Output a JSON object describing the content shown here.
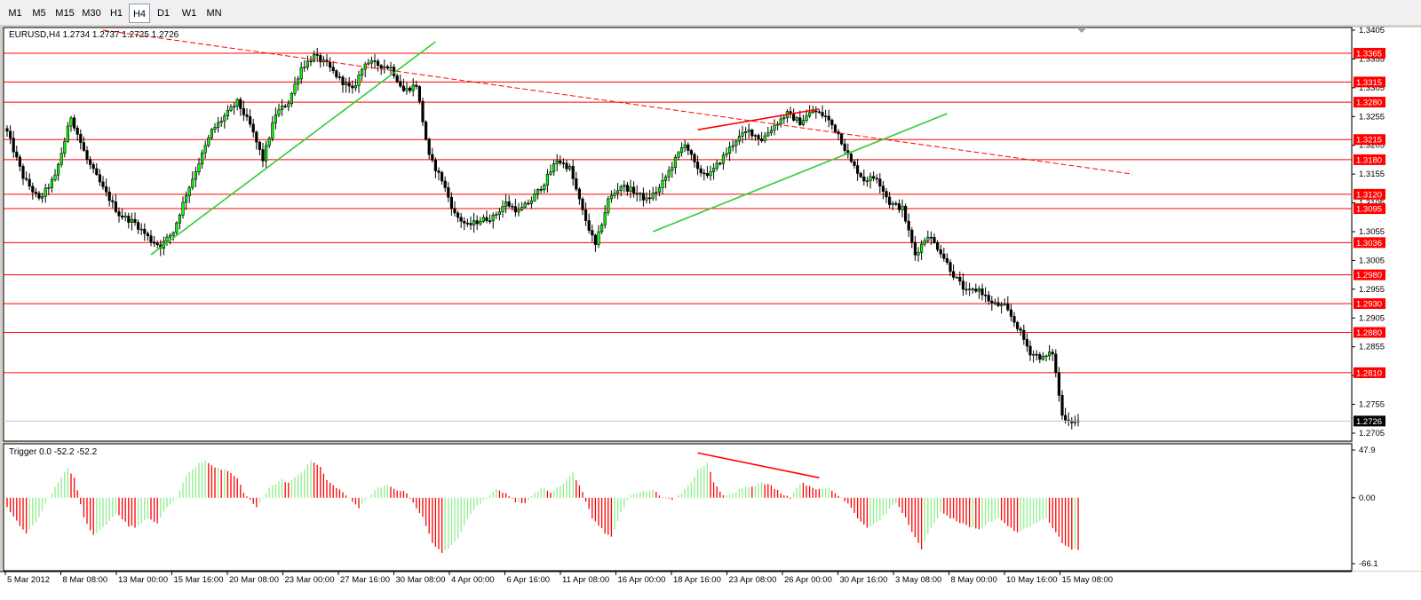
{
  "toolbar": {
    "timeframes": [
      "M1",
      "M5",
      "M15",
      "M30",
      "H1",
      "H4",
      "D1",
      "W1",
      "MN"
    ],
    "active": "H4"
  },
  "colors": {
    "bull": "#00ff00",
    "bear": "#ff0000",
    "level": "#ff0000",
    "trend_green": "#32cd32",
    "trend_red": "#ff0000",
    "osc_pos": "#90ee90",
    "osc_neg": "#ff0000",
    "current_label_bg": "#000000"
  },
  "chart_data": [
    {
      "type": "candlestick",
      "title": "EURUSD,H4  1.2734 1.2737 1.2725 1.2726",
      "symbol": "EURUSD",
      "timeframe": "H4",
      "ohlc_last": {
        "open": 1.2734,
        "high": 1.2737,
        "low": 1.2725,
        "close": 1.2726
      },
      "ylim": [
        1.2705,
        1.3405
      ],
      "y_ticks": [
        "1.3405",
        "1.3355",
        "1.3305",
        "1.3255",
        "1.3205",
        "1.3155",
        "1.3105",
        "1.3055",
        "1.3005",
        "1.2955",
        "1.2905",
        "1.2855",
        "1.2805",
        "1.2755",
        "1.2705"
      ],
      "x_ticks": [
        "5 Mar 2012",
        "8 Mar 08:00",
        "13 Mar 00:00",
        "15 Mar 16:00",
        "20 Mar 08:00",
        "23 Mar 00:00",
        "27 Mar 16:00",
        "30 Mar 08:00",
        "4 Apr 00:00",
        "6 Apr 16:00",
        "11 Apr 08:00",
        "16 Apr 00:00",
        "18 Apr 16:00",
        "23 Apr 08:00",
        "26 Apr 00:00",
        "30 Apr 16:00",
        "3 May 08:00",
        "8 May 00:00",
        "10 May 16:00",
        "15 May 08:00"
      ],
      "horizontal_levels": [
        "1.3365",
        "1.3315",
        "1.3280",
        "1.3215",
        "1.3180",
        "1.3120",
        "1.3095",
        "1.3036",
        "1.2980",
        "1.2930",
        "1.2880",
        "1.2810"
      ],
      "current_price": "1.2726",
      "anchors": [
        [
          0,
          1.3228
        ],
        [
          5,
          1.315
        ],
        [
          10,
          1.311
        ],
        [
          15,
          1.315
        ],
        [
          20,
          1.3255
        ],
        [
          25,
          1.318
        ],
        [
          30,
          1.313
        ],
        [
          35,
          1.3085
        ],
        [
          40,
          1.307
        ],
        [
          45,
          1.304
        ],
        [
          48,
          1.303
        ],
        [
          52,
          1.3055
        ],
        [
          56,
          1.312
        ],
        [
          60,
          1.3175
        ],
        [
          64,
          1.323
        ],
        [
          68,
          1.3255
        ],
        [
          72,
          1.328
        ],
        [
          76,
          1.324
        ],
        [
          80,
          1.318
        ],
        [
          84,
          1.326
        ],
        [
          88,
          1.328
        ],
        [
          92,
          1.334
        ],
        [
          96,
          1.336
        ],
        [
          100,
          1.3345
        ],
        [
          104,
          1.332
        ],
        [
          108,
          1.33
        ],
        [
          112,
          1.335
        ],
        [
          116,
          1.3345
        ],
        [
          120,
          1.334
        ],
        [
          124,
          1.33
        ],
        [
          128,
          1.331
        ],
        [
          132,
          1.3185
        ],
        [
          136,
          1.3145
        ],
        [
          140,
          1.3085
        ],
        [
          144,
          1.3065
        ],
        [
          148,
          1.3075
        ],
        [
          152,
          1.308
        ],
        [
          156,
          1.3105
        ],
        [
          160,
          1.309
        ],
        [
          164,
          1.311
        ],
        [
          168,
          1.314
        ],
        [
          172,
          1.318
        ],
        [
          176,
          1.3165
        ],
        [
          180,
          1.309
        ],
        [
          184,
          1.303
        ],
        [
          188,
          1.311
        ],
        [
          192,
          1.3135
        ],
        [
          196,
          1.3125
        ],
        [
          200,
          1.311
        ],
        [
          204,
          1.313
        ],
        [
          208,
          1.317
        ],
        [
          212,
          1.321
        ],
        [
          216,
          1.316
        ],
        [
          220,
          1.3155
        ],
        [
          224,
          1.3185
        ],
        [
          228,
          1.3215
        ],
        [
          232,
          1.323
        ],
        [
          236,
          1.3215
        ],
        [
          240,
          1.324
        ],
        [
          244,
          1.326
        ],
        [
          248,
          1.3245
        ],
        [
          252,
          1.3265
        ],
        [
          256,
          1.3255
        ],
        [
          260,
          1.3225
        ],
        [
          264,
          1.3175
        ],
        [
          268,
          1.3145
        ],
        [
          272,
          1.315
        ],
        [
          276,
          1.3105
        ],
        [
          280,
          1.3095
        ],
        [
          284,
          1.3015
        ],
        [
          288,
          1.305
        ],
        [
          292,
          1.302
        ],
        [
          296,
          1.298
        ],
        [
          300,
          1.295
        ],
        [
          304,
          1.2955
        ],
        [
          308,
          1.293
        ],
        [
          312,
          1.2925
        ],
        [
          316,
          1.289
        ],
        [
          320,
          1.2845
        ],
        [
          324,
          1.2835
        ],
        [
          327,
          1.2845
        ],
        [
          330,
          1.2735
        ],
        [
          333,
          1.2726
        ]
      ],
      "price_trendlines": [
        {
          "color": "red",
          "style": "dashed",
          "from": [
            30,
            1.3405
          ],
          "to": [
            352,
            1.3155
          ]
        },
        {
          "color": "green",
          "style": "solid",
          "from": [
            45,
            1.3015
          ],
          "to": [
            134,
            1.3385
          ]
        },
        {
          "color": "green",
          "style": "solid",
          "from": [
            202,
            1.3055
          ],
          "to": [
            294,
            1.326
          ]
        },
        {
          "color": "red",
          "style": "solid",
          "from": [
            216,
            1.3232
          ],
          "to": [
            254,
            1.3268
          ]
        }
      ]
    },
    {
      "type": "histogram",
      "title": "Trigger 0.0 -52.2 -52.2",
      "name": "Trigger",
      "values_header": [
        "0.0",
        "-52.2",
        "-52.2"
      ],
      "ylim": [
        -66.1,
        47.9
      ],
      "y_ticks": [
        "47.9",
        "0.00",
        "-66.1"
      ],
      "anchors": [
        [
          0,
          -10
        ],
        [
          4,
          -28
        ],
        [
          6,
          -35
        ],
        [
          9,
          -25
        ],
        [
          13,
          0
        ],
        [
          16,
          15
        ],
        [
          19,
          30
        ],
        [
          21,
          20
        ],
        [
          24,
          -20
        ],
        [
          27,
          -38
        ],
        [
          30,
          -30
        ],
        [
          34,
          -15
        ],
        [
          38,
          -28
        ],
        [
          40,
          -30
        ],
        [
          44,
          -20
        ],
        [
          47,
          -25
        ],
        [
          50,
          -10
        ],
        [
          53,
          0
        ],
        [
          56,
          22
        ],
        [
          60,
          35
        ],
        [
          62,
          38
        ],
        [
          65,
          30
        ],
        [
          68,
          28
        ],
        [
          72,
          20
        ],
        [
          74,
          5
        ],
        [
          78,
          -10
        ],
        [
          82,
          10
        ],
        [
          86,
          18
        ],
        [
          88,
          15
        ],
        [
          92,
          25
        ],
        [
          95,
          38
        ],
        [
          98,
          30
        ],
        [
          100,
          18
        ],
        [
          103,
          10
        ],
        [
          107,
          0
        ],
        [
          110,
          -10
        ],
        [
          113,
          0
        ],
        [
          116,
          10
        ],
        [
          119,
          12
        ],
        [
          122,
          8
        ],
        [
          125,
          5
        ],
        [
          127,
          -5
        ],
        [
          130,
          -20
        ],
        [
          133,
          -45
        ],
        [
          136,
          -55
        ],
        [
          138,
          -52
        ],
        [
          141,
          -40
        ],
        [
          144,
          -20
        ],
        [
          147,
          -8
        ],
        [
          150,
          0
        ],
        [
          153,
          8
        ],
        [
          156,
          5
        ],
        [
          159,
          -5
        ],
        [
          162,
          -5
        ],
        [
          165,
          5
        ],
        [
          168,
          10
        ],
        [
          170,
          5
        ],
        [
          174,
          15
        ],
        [
          177,
          25
        ],
        [
          180,
          5
        ],
        [
          183,
          -20
        ],
        [
          187,
          -35
        ],
        [
          189,
          -40
        ],
        [
          192,
          -15
        ],
        [
          195,
          3
        ],
        [
          198,
          5
        ],
        [
          202,
          8
        ],
        [
          205,
          0
        ],
        [
          208,
          -2
        ],
        [
          211,
          5
        ],
        [
          214,
          15
        ],
        [
          216,
          28
        ],
        [
          219,
          35
        ],
        [
          221,
          15
        ],
        [
          224,
          2
        ],
        [
          227,
          5
        ],
        [
          230,
          10
        ],
        [
          233,
          12
        ],
        [
          236,
          15
        ],
        [
          239,
          12
        ],
        [
          242,
          5
        ],
        [
          245,
          0
        ],
        [
          248,
          15
        ],
        [
          251,
          12
        ],
        [
          254,
          8
        ],
        [
          257,
          10
        ],
        [
          260,
          2
        ],
        [
          263,
          -5
        ],
        [
          266,
          -20
        ],
        [
          269,
          -30
        ],
        [
          272,
          -25
        ],
        [
          275,
          -15
        ],
        [
          278,
          -5
        ],
        [
          281,
          -20
        ],
        [
          284,
          -40
        ],
        [
          286,
          -52
        ],
        [
          289,
          -30
        ],
        [
          292,
          -15
        ],
        [
          295,
          -20
        ],
        [
          298,
          -25
        ],
        [
          301,
          -30
        ],
        [
          304,
          -32
        ],
        [
          307,
          -25
        ],
        [
          310,
          -20
        ],
        [
          313,
          -28
        ],
        [
          316,
          -35
        ],
        [
          319,
          -30
        ],
        [
          322,
          -25
        ],
        [
          325,
          -20
        ],
        [
          328,
          -35
        ],
        [
          330,
          -45
        ],
        [
          333,
          -52
        ]
      ],
      "trendline": {
        "color": "red",
        "from": [
          216,
          45
        ],
        "to": [
          254,
          20
        ]
      }
    }
  ]
}
